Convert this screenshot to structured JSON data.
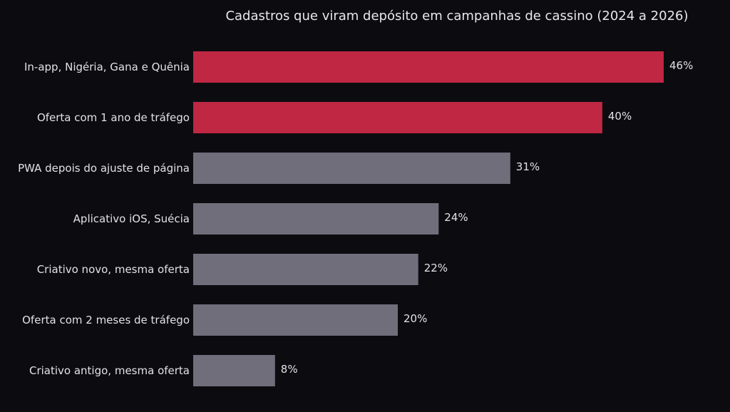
{
  "chart_data": {
    "type": "bar",
    "orientation": "horizontal",
    "title": "Cadastros que viram depósito em campanhas de cassino (2024 a 2026)",
    "categories": [
      "In-app, Nigéria, Gana e Quênia",
      "Oferta com 1 ano de tráfego",
      "PWA depois do ajuste de página",
      "Aplicativo iOS, Suécia",
      "Criativo novo, mesma oferta",
      "Oferta com 2 meses de tráfego",
      "Criativo antigo, mesma oferta"
    ],
    "values": [
      46,
      40,
      31,
      24,
      22,
      20,
      8
    ],
    "value_labels": [
      "46%",
      "40%",
      "31%",
      "24%",
      "22%",
      "20%",
      "8%"
    ],
    "highlighted": [
      true,
      true,
      false,
      false,
      false,
      false,
      false
    ],
    "xlim": [
      0,
      46
    ],
    "grid": false,
    "legend": "none"
  },
  "colors": {
    "background": "#0c0c10",
    "highlight": "#bf2743",
    "normal": "#6f6e7a",
    "text": "#e2e2e6",
    "title": "#e8e8ec"
  }
}
